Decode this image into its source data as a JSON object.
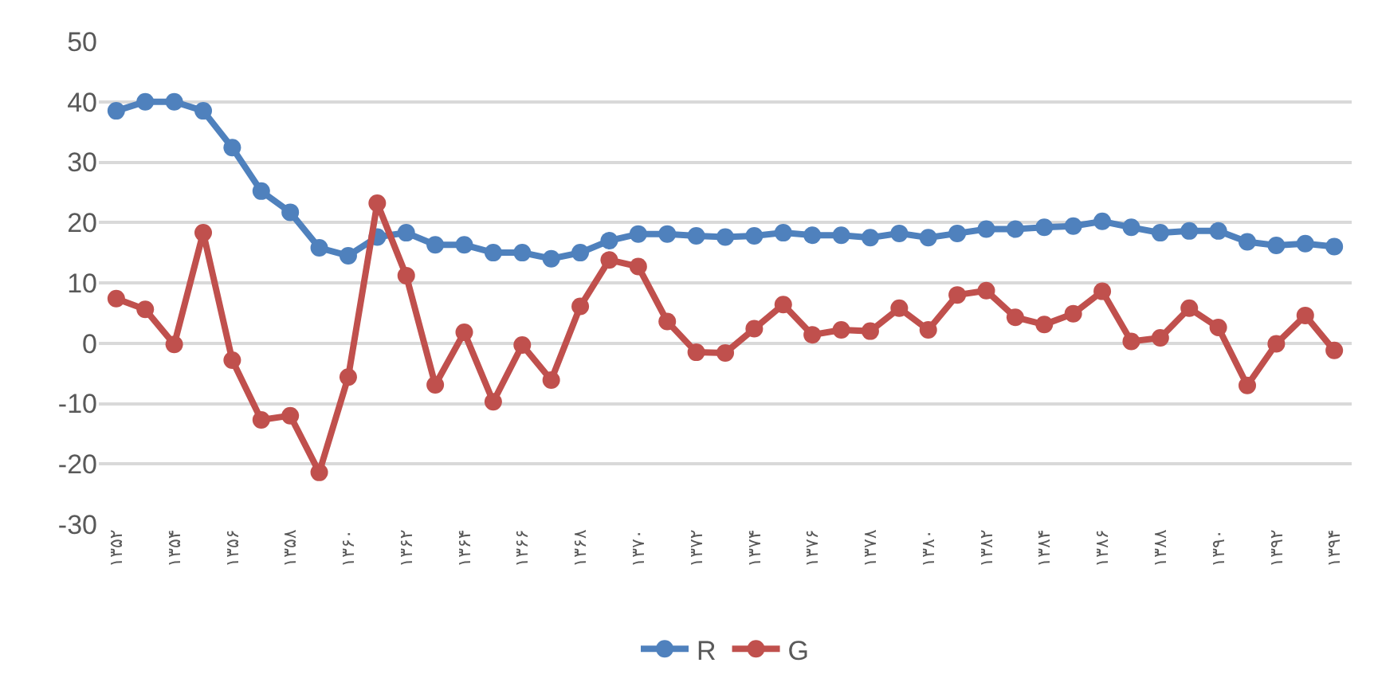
{
  "chart_data": {
    "type": "line",
    "categories": [
      "۱۳۵۲",
      null,
      "۱۳۵۴",
      null,
      "۱۳۵۶",
      null,
      "۱۳۵۸",
      null,
      "۱۳۶۰",
      null,
      "۱۳۶۲",
      null,
      "۱۳۶۴",
      null,
      "۱۳۶۶",
      null,
      "۱۳۶۸",
      null,
      "۱۳۷۰",
      null,
      "۱۳۷۲",
      null,
      "۱۳۷۴",
      null,
      "۱۳۷۶",
      null,
      "۱۳۷۸",
      null,
      "۱۳۸۰",
      null,
      "۱۳۸۲",
      null,
      "۱۳۸۴",
      null,
      "۱۳۸۶",
      null,
      "۱۳۸۸",
      null,
      "۱۳۹۰",
      null,
      "۱۳۹۲",
      null,
      "۱۳۹۴"
    ],
    "series": [
      {
        "name": "R",
        "color": "#4f81bd",
        "values": [
          38.5,
          40,
          40,
          38.5,
          32.4,
          25.2,
          21.7,
          15.8,
          14.5,
          17.6,
          18.3,
          16.3,
          16.3,
          15,
          15,
          14,
          15,
          17,
          18.1,
          18.1,
          17.8,
          17.6,
          17.8,
          18.3,
          17.9,
          17.9,
          17.5,
          18.2,
          17.5,
          18.2,
          18.9,
          18.9,
          19.2,
          19.4,
          20.2,
          19.2,
          18.3,
          18.6,
          18.6,
          16.8,
          16.2,
          16.5,
          16
        ]
      },
      {
        "name": "G",
        "color": "#c0504d",
        "values": [
          7.4,
          5.6,
          -0.2,
          18.3,
          -2.8,
          -12.7,
          -12,
          -21.4,
          -5.6,
          23.2,
          11.2,
          -6.9,
          1.8,
          -9.7,
          -0.3,
          -6.1,
          6.1,
          13.8,
          12.7,
          3.6,
          -1.5,
          -1.6,
          2.4,
          6.4,
          1.4,
          2.2,
          2,
          5.8,
          2.2,
          8,
          8.7,
          4.3,
          3.1,
          4.9,
          8.6,
          0.3,
          0.9,
          5.8,
          2.6,
          -7,
          -0.1,
          4.6,
          -1.2
        ]
      }
    ],
    "ylim": [
      -30,
      50
    ],
    "yticks": [
      -30,
      -20,
      -10,
      0,
      10,
      20,
      30,
      40,
      50
    ],
    "grid": "y",
    "legend": "bottom",
    "marker": "circle",
    "line_style": "solid"
  }
}
